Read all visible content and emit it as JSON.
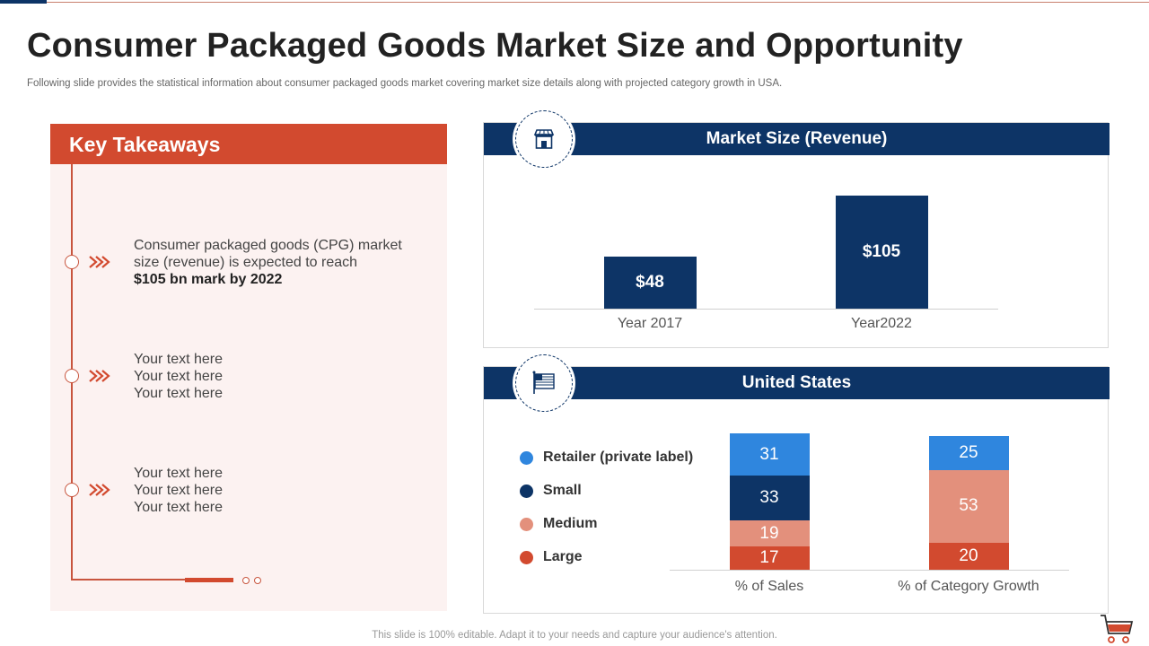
{
  "slide": {
    "title": "Consumer Packaged Goods Market Size and Opportunity",
    "subtitle": "Following slide provides the statistical information about consumer packaged goods market covering market size details along with projected category growth in USA.",
    "footer": "This slide is 100% editable. Adapt it to your needs and capture your audience's attention."
  },
  "takeaways": {
    "header": "Key Takeaways",
    "items": [
      {
        "lines": [
          "Consumer packaged goods (CPG) market",
          "size (revenue)  is expected to reach"
        ],
        "bold": "$105 bn mark by 2022"
      },
      {
        "lines": [
          "Your text here",
          "Your text here",
          "Your text here"
        ],
        "bold": ""
      },
      {
        "lines": [
          "Your text here",
          "Your text here",
          "Your text here"
        ],
        "bold": ""
      }
    ]
  },
  "market_card": {
    "header": "Market Size (Revenue)",
    "icon": "store-icon"
  },
  "us_card": {
    "header": "United States",
    "icon": "us-flag-icon"
  },
  "colors": {
    "navy": "#0d3466",
    "red": "#d24a2f",
    "retailer": "#2f86de",
    "small": "#0d3466",
    "medium": "#e3907c",
    "large": "#d24a2f"
  },
  "chart_data": [
    {
      "type": "bar",
      "title": "Market Size (Revenue)",
      "categories": [
        "Year 2017",
        "Year2022"
      ],
      "values": [
        48,
        105
      ],
      "value_labels": [
        "$48",
        "$105"
      ],
      "ylim": [
        0,
        110
      ]
    },
    {
      "type": "bar",
      "stacked": true,
      "title": "United States",
      "categories": [
        "% of Sales",
        "% of Category Growth"
      ],
      "series": [
        {
          "name": "Large",
          "values": [
            17,
            20
          ]
        },
        {
          "name": "Medium",
          "values": [
            19,
            53
          ]
        },
        {
          "name": "Small",
          "values": [
            33,
            0
          ]
        },
        {
          "name": "Retailer (private label)",
          "values": [
            31,
            25
          ]
        }
      ],
      "legend_order": [
        "Retailer (private label)",
        "Small",
        "Medium",
        "Large"
      ],
      "legend": "left",
      "ylim": [
        0,
        100
      ]
    }
  ]
}
